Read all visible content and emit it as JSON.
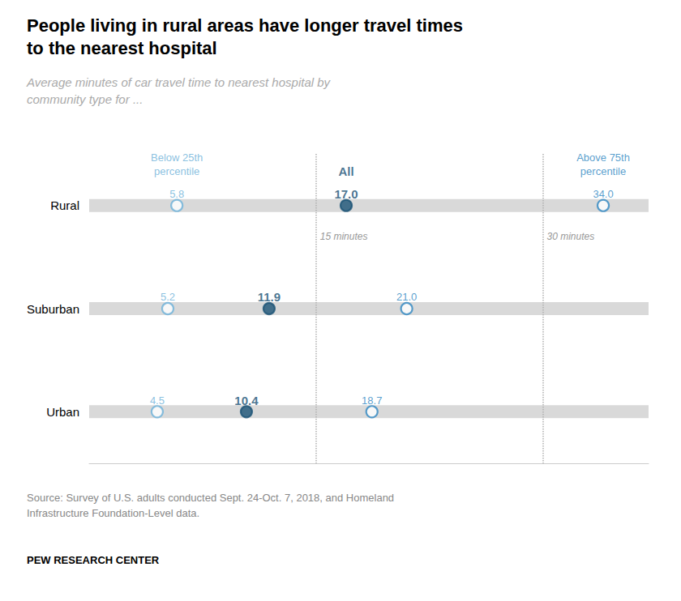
{
  "chart_data": {
    "type": "dot",
    "orientation": "horizontal",
    "title": "People living in rural areas have longer travel times\nto the nearest hospital",
    "subtitle": "Average minutes of car travel time to nearest hospital by\ncommunity type for ...",
    "categories": [
      "Rural",
      "Suburban",
      "Urban"
    ],
    "series": [
      {
        "name": "Below 25th\npercentile",
        "color": "#6cb0d8",
        "marker": "open_circle",
        "values": [
          5.8,
          5.2,
          4.5
        ],
        "value_labels": [
          "5.8",
          "5.2",
          "4.5"
        ]
      },
      {
        "name": "All",
        "color": "#1a5276",
        "marker": "circle",
        "values": [
          17.0,
          11.9,
          10.4
        ],
        "value_labels": [
          "17.0",
          "11.9",
          "10.4"
        ]
      },
      {
        "name": "Above 75th\npercentile",
        "color": "#2e86c1",
        "marker": "open_circle",
        "values": [
          34.0,
          21.0,
          18.7
        ],
        "value_labels": [
          "34.0",
          "21.0",
          "18.7"
        ]
      }
    ],
    "xlim": [
      0,
      37
    ],
    "tick_labels": "y",
    "grid": false,
    "legend": false,
    "data_labels": true,
    "band_color": "#d9d9d9",
    "reference_lines": [
      {
        "value": 15,
        "label": "15 minutes",
        "color": "#b0b0b0"
      },
      {
        "value": 30,
        "label": "30 minutes",
        "color": "#b0b0b0"
      }
    ],
    "source": "Source: Survey of U.S. adults conducted Sept. 24-Oct. 7, 2018, and Homeland\nInfrastructure Foundation-Level data.",
    "footer": "PEW RESEARCH CENTER"
  }
}
